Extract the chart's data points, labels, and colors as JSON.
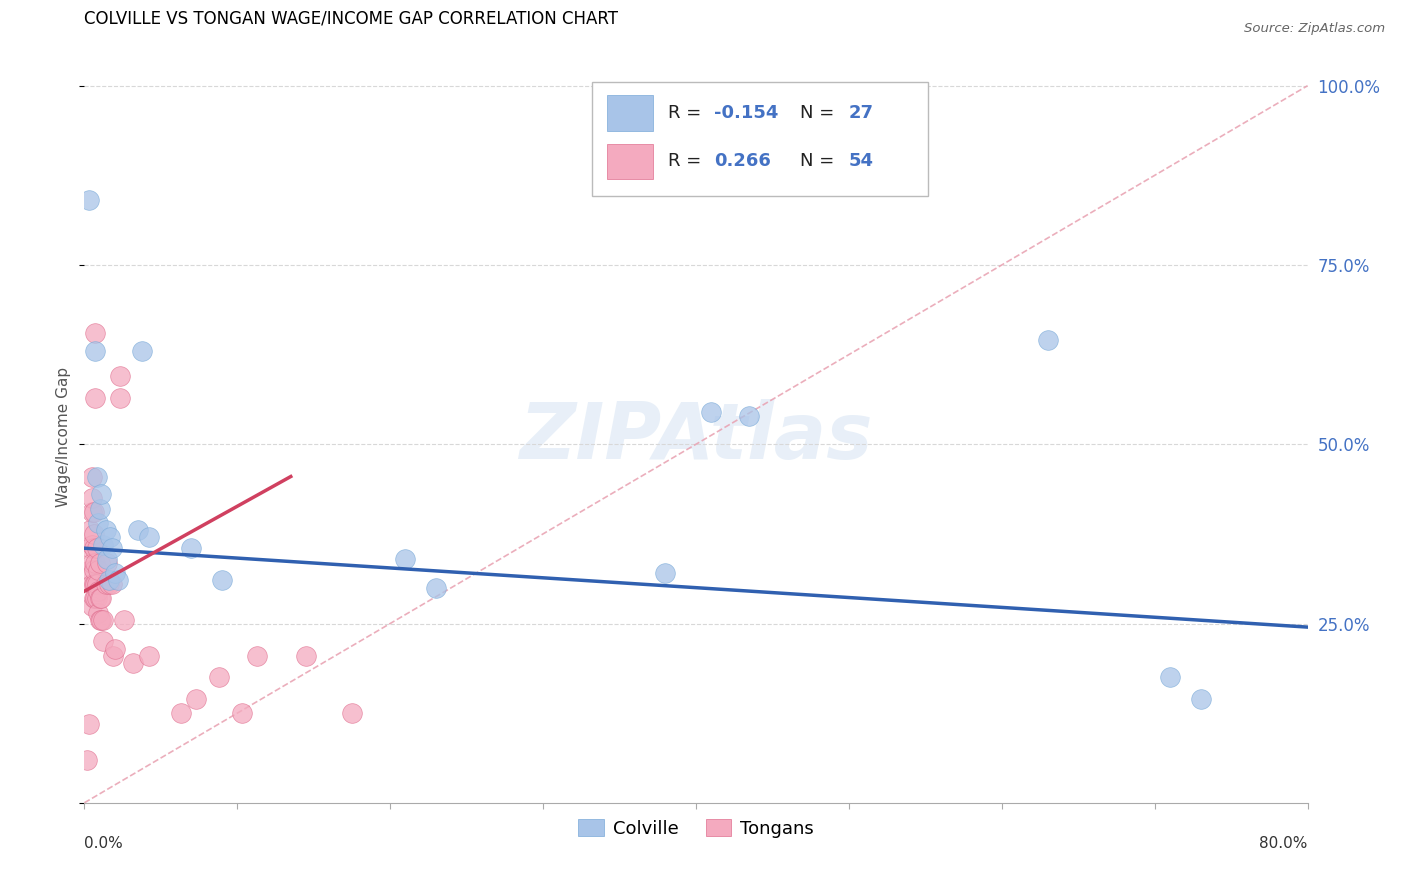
{
  "title": "COLVILLE VS TONGAN WAGE/INCOME GAP CORRELATION CHART",
  "source": "Source: ZipAtlas.com",
  "ylabel": "Wage/Income Gap",
  "xmin": 0.0,
  "xmax": 0.8,
  "ymin": 0.0,
  "ymax": 1.02,
  "colville_color": "#a8c4e8",
  "colville_edge": "#7aaad8",
  "tongans_color": "#f4aabf",
  "tongans_edge": "#e07090",
  "trend_colville_color": "#3060b0",
  "trend_tongans_color": "#d04060",
  "ref_line_color": "#e8a0b0",
  "grid_color": "#d8d8d8",
  "right_axis_color": "#4472c4",
  "colville_r": "-0.154",
  "colville_n": "27",
  "tongans_r": "0.266",
  "tongans_n": "54",
  "colville_trend_x": [
    0.0,
    0.8
  ],
  "colville_trend_y": [
    0.355,
    0.245
  ],
  "tongans_trend_x": [
    0.0,
    0.135
  ],
  "tongans_trend_y": [
    0.295,
    0.455
  ],
  "ref_line_x": [
    0.0,
    0.8
  ],
  "ref_line_y": [
    0.0,
    1.0
  ],
  "colville_points": [
    [
      0.003,
      0.84
    ],
    [
      0.007,
      0.63
    ],
    [
      0.008,
      0.455
    ],
    [
      0.009,
      0.39
    ],
    [
      0.01,
      0.41
    ],
    [
      0.011,
      0.43
    ],
    [
      0.012,
      0.36
    ],
    [
      0.014,
      0.38
    ],
    [
      0.015,
      0.34
    ],
    [
      0.016,
      0.31
    ],
    [
      0.017,
      0.37
    ],
    [
      0.018,
      0.355
    ],
    [
      0.02,
      0.32
    ],
    [
      0.022,
      0.31
    ],
    [
      0.035,
      0.38
    ],
    [
      0.038,
      0.63
    ],
    [
      0.042,
      0.37
    ],
    [
      0.07,
      0.355
    ],
    [
      0.09,
      0.31
    ],
    [
      0.21,
      0.34
    ],
    [
      0.23,
      0.3
    ],
    [
      0.38,
      0.32
    ],
    [
      0.41,
      0.545
    ],
    [
      0.435,
      0.54
    ],
    [
      0.63,
      0.645
    ],
    [
      0.71,
      0.175
    ],
    [
      0.73,
      0.145
    ]
  ],
  "tongans_points": [
    [
      0.002,
      0.06
    ],
    [
      0.003,
      0.11
    ],
    [
      0.004,
      0.325
    ],
    [
      0.004,
      0.355
    ],
    [
      0.004,
      0.38
    ],
    [
      0.005,
      0.275
    ],
    [
      0.005,
      0.305
    ],
    [
      0.005,
      0.335
    ],
    [
      0.005,
      0.36
    ],
    [
      0.005,
      0.405
    ],
    [
      0.005,
      0.425
    ],
    [
      0.005,
      0.455
    ],
    [
      0.006,
      0.285
    ],
    [
      0.006,
      0.305
    ],
    [
      0.006,
      0.325
    ],
    [
      0.006,
      0.355
    ],
    [
      0.006,
      0.375
    ],
    [
      0.006,
      0.405
    ],
    [
      0.007,
      0.565
    ],
    [
      0.007,
      0.655
    ],
    [
      0.007,
      0.285
    ],
    [
      0.007,
      0.305
    ],
    [
      0.007,
      0.335
    ],
    [
      0.008,
      0.285
    ],
    [
      0.008,
      0.305
    ],
    [
      0.008,
      0.355
    ],
    [
      0.009,
      0.265
    ],
    [
      0.009,
      0.295
    ],
    [
      0.009,
      0.325
    ],
    [
      0.01,
      0.255
    ],
    [
      0.01,
      0.285
    ],
    [
      0.01,
      0.335
    ],
    [
      0.011,
      0.255
    ],
    [
      0.011,
      0.285
    ],
    [
      0.012,
      0.255
    ],
    [
      0.012,
      0.225
    ],
    [
      0.014,
      0.305
    ],
    [
      0.015,
      0.335
    ],
    [
      0.016,
      0.305
    ],
    [
      0.018,
      0.305
    ],
    [
      0.019,
      0.205
    ],
    [
      0.02,
      0.215
    ],
    [
      0.023,
      0.565
    ],
    [
      0.023,
      0.595
    ],
    [
      0.026,
      0.255
    ],
    [
      0.032,
      0.195
    ],
    [
      0.042,
      0.205
    ],
    [
      0.063,
      0.125
    ],
    [
      0.073,
      0.145
    ],
    [
      0.088,
      0.175
    ],
    [
      0.103,
      0.125
    ],
    [
      0.113,
      0.205
    ],
    [
      0.145,
      0.205
    ],
    [
      0.175,
      0.125
    ]
  ]
}
